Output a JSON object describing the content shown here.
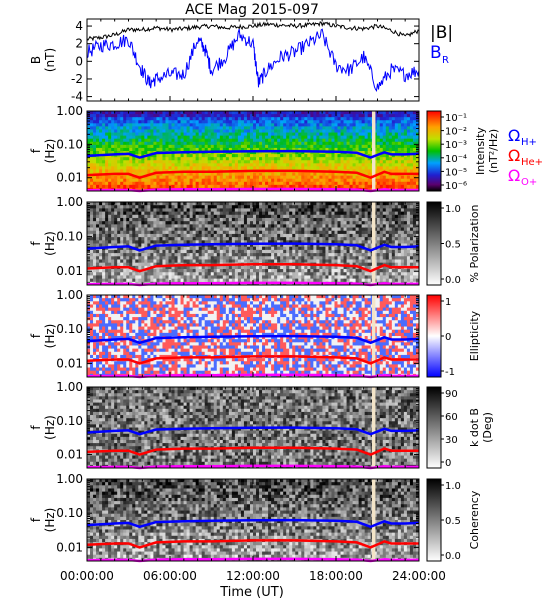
{
  "chart_data": {
    "title": "ACE Mag 2015-097",
    "xlabel": "Time (UT)",
    "xticks": [
      "00:00:00",
      "06:00:00",
      "12:00:00",
      "18:00:00",
      "24:00:00"
    ],
    "xrange_hours": [
      0,
      24
    ],
    "panels": [
      {
        "type": "line",
        "ylabel": "B",
        "yunit": "(nT)",
        "ylim": [
          -4.5,
          4.8
        ],
        "yticks": [
          "4",
          "2",
          "0",
          "-2",
          "-4"
        ],
        "legend": [
          "|B|",
          "B"
        ],
        "legend_sub": [
          "",
          "R"
        ],
        "series": [
          {
            "name": "|B|",
            "color": "#000000",
            "x": [
              0,
              1,
              2,
              3,
              4,
              5,
              6,
              7,
              8,
              9,
              10,
              11,
              12,
              13,
              14,
              15,
              16,
              17,
              18,
              19,
              20,
              21,
              22,
              23,
              24
            ],
            "y": [
              2.5,
              2.7,
              3.0,
              3.6,
              3.6,
              3.8,
              3.6,
              3.7,
              3.9,
              4.0,
              3.8,
              3.9,
              4.0,
              4.2,
              4.1,
              4.0,
              4.1,
              4.3,
              4.0,
              3.8,
              3.7,
              4.0,
              3.5,
              2.8,
              3.5
            ]
          },
          {
            "name": "B",
            "color": "#0000ff",
            "x": [
              0,
              1,
              2,
              3,
              3.8,
              4.5,
              5,
              6,
              7,
              8,
              8.5,
              9,
              10,
              11,
              12,
              12.4,
              13,
              14,
              15,
              16,
              17,
              18,
              19,
              20,
              21,
              22,
              23,
              24
            ],
            "y": [
              1.0,
              1.8,
              2.0,
              2.5,
              -0.5,
              -2.5,
              -2.0,
              -1.5,
              -1.5,
              2.5,
              1.5,
              -1.0,
              0.5,
              3.0,
              2.0,
              -2.5,
              -1.0,
              0.5,
              1.0,
              2.0,
              3.0,
              -0.5,
              -1.0,
              0.5,
              -3.0,
              -1.0,
              -1.5,
              -1.0
            ]
          }
        ]
      },
      {
        "type": "heatmap",
        "ylabel": "f",
        "yunit": "(Hz)",
        "ylim": [
          0.004,
          1.0
        ],
        "yticks": [
          "1.00",
          "0.10",
          "0.01"
        ],
        "colorbar_label": "Intensity",
        "colorbar_unit": "(nT²/Hz)",
        "colorbar_ticks": [
          "10⁻¹",
          "10⁻²",
          "10⁻³",
          "10⁻⁴",
          "10⁻⁵",
          "10⁻⁶"
        ],
        "colormap": "rainbow",
        "legend": [
          "Ω",
          "Ω",
          "Ω"
        ],
        "legend_sub": [
          "H+",
          "He+",
          "O+"
        ],
        "legend_colors": [
          "#0000ff",
          "#ff0000",
          "#ff00ff"
        ]
      },
      {
        "type": "heatmap",
        "ylabel": "f",
        "yunit": "(Hz)",
        "ylim": [
          0.004,
          1.0
        ],
        "yticks": [
          "1.00",
          "0.10",
          "0.01"
        ],
        "colorbar_label": "% Polarization",
        "colorbar_ticks": [
          "1.0",
          "0.5",
          "0.0"
        ],
        "colormap": "gray"
      },
      {
        "type": "heatmap",
        "ylabel": "f",
        "yunit": "(Hz)",
        "ylim": [
          0.004,
          1.0
        ],
        "yticks": [
          "1.00",
          "0.10",
          "0.01"
        ],
        "colorbar_label": "Ellipticity",
        "colorbar_ticks": [
          "1",
          "0",
          "-1"
        ],
        "colormap": "bwr"
      },
      {
        "type": "heatmap",
        "ylabel": "f",
        "yunit": "(Hz)",
        "ylim": [
          0.004,
          1.0
        ],
        "yticks": [
          "1.00",
          "0.10",
          "0.01"
        ],
        "colorbar_label": "k dot B",
        "colorbar_unit": "(Deg)",
        "colorbar_ticks": [
          "90",
          "60",
          "30",
          "0"
        ],
        "colormap": "gray"
      },
      {
        "type": "heatmap",
        "ylabel": "f",
        "yunit": "(Hz)",
        "ylim": [
          0.004,
          1.0
        ],
        "yticks": [
          "1.00",
          "0.10",
          "0.01"
        ],
        "colorbar_label": "Coherency",
        "colorbar_ticks": [
          "1.0",
          "0.5",
          "0.0"
        ],
        "colormap": "gray"
      }
    ],
    "gyrofrequencies": {
      "hours": [
        0,
        2,
        3,
        3.8,
        5,
        7,
        9,
        12,
        15,
        18,
        19.5,
        20.5,
        21.5,
        22,
        23,
        24
      ],
      "H+": [
        0.045,
        0.05,
        0.052,
        0.04,
        0.055,
        0.058,
        0.06,
        0.062,
        0.063,
        0.06,
        0.056,
        0.04,
        0.058,
        0.05,
        0.05,
        0.052
      ],
      "He+": [
        0.012,
        0.013,
        0.013,
        0.01,
        0.014,
        0.015,
        0.015,
        0.016,
        0.016,
        0.015,
        0.014,
        0.01,
        0.015,
        0.013,
        0.013,
        0.013
      ],
      "O+": [
        0.0042,
        0.0043,
        0.0043,
        0.004,
        0.0044,
        0.0045,
        0.0045,
        0.0046,
        0.0046,
        0.0045,
        0.0044,
        0.004,
        0.0045,
        0.0043,
        0.0043,
        0.0043
      ]
    },
    "data_gap_hours": [
      20.6,
      20.85
    ]
  }
}
